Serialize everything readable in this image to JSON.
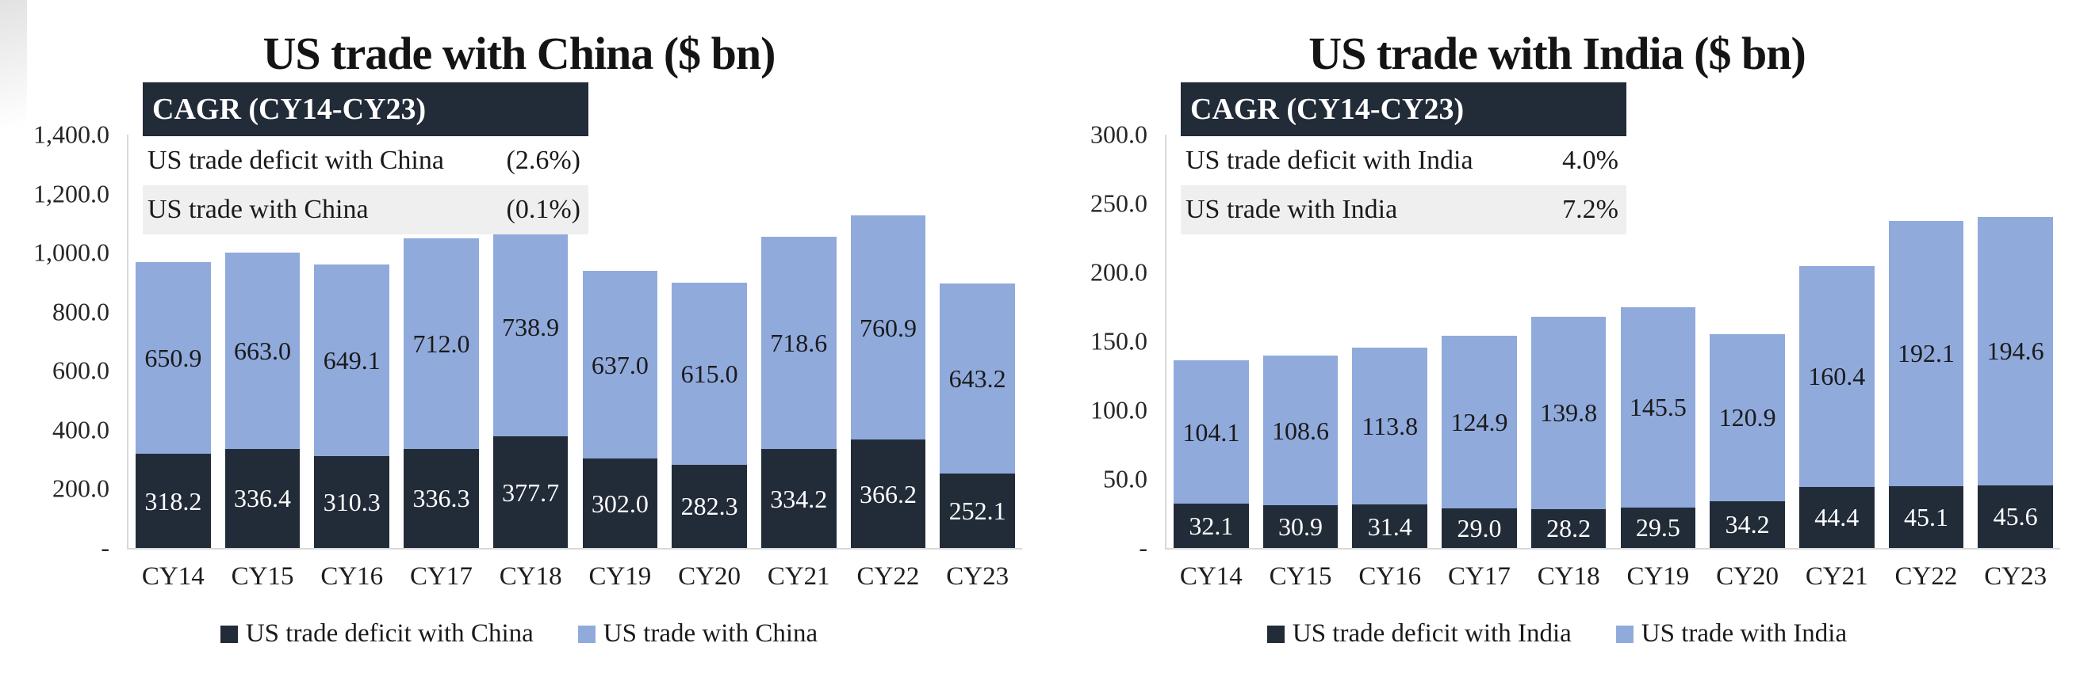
{
  "page": {
    "background": "#FFFFFF"
  },
  "colors": {
    "deficit_series": "#222B38",
    "trade_series": "#90AADC",
    "axis_line": "#D9D9D9",
    "cagr_header_bg": "#222B38",
    "cagr_header_text": "#FFFFFF",
    "cagr_row_alt_bg": "#EFEFEF",
    "deficit_label_text": "#FFFFFF",
    "trade_label_text": "#1A1A1A"
  },
  "chart_data": [
    {
      "type": "bar",
      "stacked": true,
      "grid": false,
      "legend_position": "bottom",
      "title": "US trade with China ($ bn)",
      "xlabel": "",
      "ylabel": "",
      "ylim": [
        0,
        1400
      ],
      "categories": [
        "CY14",
        "CY15",
        "CY16",
        "CY17",
        "CY18",
        "CY19",
        "CY20",
        "CY21",
        "CY22",
        "CY23"
      ],
      "series": [
        {
          "name": "US trade deficit with China",
          "role": "deficit",
          "values": [
            318.2,
            336.4,
            310.3,
            336.3,
            377.7,
            302.0,
            282.3,
            334.2,
            366.2,
            252.1
          ]
        },
        {
          "name": "US trade with China",
          "role": "trade",
          "values": [
            650.9,
            663.0,
            649.1,
            712.0,
            738.9,
            637.0,
            615.0,
            718.6,
            760.9,
            643.2
          ]
        }
      ],
      "yticks": [
        {
          "value": 1400,
          "label": "1,400.0"
        },
        {
          "value": 1200,
          "label": "1,200.0"
        },
        {
          "value": 1000,
          "label": "1,000.0"
        },
        {
          "value": 800,
          "label": "800.0"
        },
        {
          "value": 600,
          "label": "600.0"
        },
        {
          "value": 400,
          "label": "400.0"
        },
        {
          "value": 200,
          "label": "200.0"
        },
        {
          "value": 0,
          "label": "-"
        }
      ],
      "cagr": {
        "header": "CAGR (CY14-CY23)",
        "rows": [
          {
            "label": "US trade deficit with China",
            "value": "(2.6%)"
          },
          {
            "label": "US trade with China",
            "value": "(0.1%)"
          }
        ]
      }
    },
    {
      "type": "bar",
      "stacked": true,
      "grid": false,
      "legend_position": "bottom",
      "title": "US trade with India ($ bn)",
      "xlabel": "",
      "ylabel": "",
      "ylim": [
        0,
        300
      ],
      "categories": [
        "CY14",
        "CY15",
        "CY16",
        "CY17",
        "CY18",
        "CY19",
        "CY20",
        "CY21",
        "CY22",
        "CY23"
      ],
      "series": [
        {
          "name": "US trade deficit with India",
          "role": "deficit",
          "values": [
            32.1,
            30.9,
            31.4,
            29.0,
            28.2,
            29.5,
            34.2,
            44.4,
            45.1,
            45.6
          ]
        },
        {
          "name": "US trade with India",
          "role": "trade",
          "values": [
            104.1,
            108.6,
            113.8,
            124.9,
            139.8,
            145.5,
            120.9,
            160.4,
            192.1,
            194.6
          ]
        }
      ],
      "yticks": [
        {
          "value": 300,
          "label": "300.0"
        },
        {
          "value": 250,
          "label": "250.0"
        },
        {
          "value": 200,
          "label": "200.0"
        },
        {
          "value": 150,
          "label": "150.0"
        },
        {
          "value": 100,
          "label": "100.0"
        },
        {
          "value": 50,
          "label": "50.0"
        },
        {
          "value": 0,
          "label": "-"
        }
      ],
      "cagr": {
        "header": "CAGR (CY14-CY23)",
        "rows": [
          {
            "label": "US trade deficit with India",
            "value": "4.0%"
          },
          {
            "label": "US trade with India",
            "value": "7.2%"
          }
        ]
      }
    }
  ]
}
